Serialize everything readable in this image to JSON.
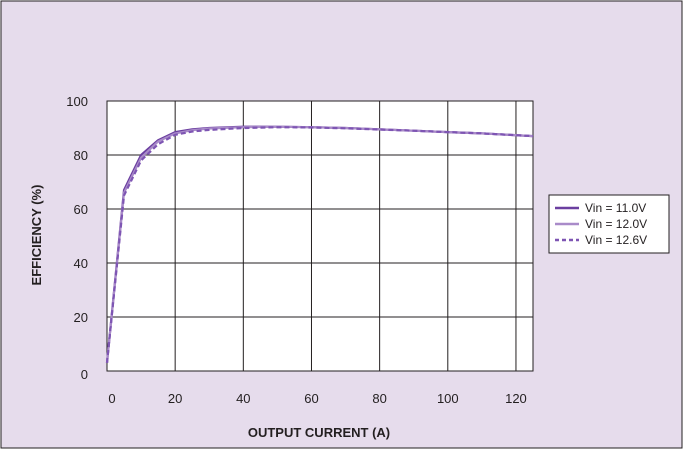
{
  "colors": {
    "background": "#e6dcec",
    "plot_area": "#ffffff",
    "grid": "#231f20",
    "series": [
      "#6b3fa0",
      "#a98bc9",
      "#7e55b3"
    ]
  },
  "chart_data": {
    "type": "line",
    "title": "",
    "xlabel": "OUTPUT CURRENT (A)",
    "ylabel": "EFFICIENCY (%)",
    "xlim": [
      0,
      125
    ],
    "ylim": [
      0,
      100
    ],
    "x_ticks": [
      0,
      20,
      40,
      60,
      80,
      100,
      120
    ],
    "y_ticks": [
      0,
      20,
      40,
      60,
      80,
      100
    ],
    "grid": true,
    "legend_position": "right",
    "series": [
      {
        "name": "Vin = 11.0V",
        "style": "solid",
        "x": [
          0,
          5,
          10,
          15,
          20,
          25,
          30,
          40,
          50,
          60,
          70,
          80,
          90,
          100,
          110,
          125
        ],
        "y": [
          3,
          67,
          80,
          85.5,
          88.5,
          89.5,
          90,
          90.5,
          90.5,
          90.3,
          90,
          89.5,
          89,
          88.5,
          88,
          87
        ]
      },
      {
        "name": "Vin = 12.0V",
        "style": "solid",
        "x": [
          0,
          5,
          10,
          15,
          20,
          25,
          30,
          40,
          50,
          60,
          70,
          80,
          90,
          100,
          110,
          125
        ],
        "y": [
          3,
          66,
          79,
          85,
          88,
          89.2,
          89.8,
          90.3,
          90.5,
          90.3,
          90,
          89.5,
          89,
          88.5,
          88,
          87
        ]
      },
      {
        "name": "Vin = 12.6V",
        "style": "dashed",
        "x": [
          0,
          5,
          10,
          15,
          20,
          25,
          30,
          40,
          50,
          60,
          70,
          80,
          90,
          100,
          110,
          125
        ],
        "y": [
          3,
          65,
          78,
          84,
          87.5,
          88.7,
          89.3,
          90,
          90.3,
          90.2,
          89.9,
          89.4,
          89,
          88.5,
          88,
          87
        ]
      }
    ]
  }
}
